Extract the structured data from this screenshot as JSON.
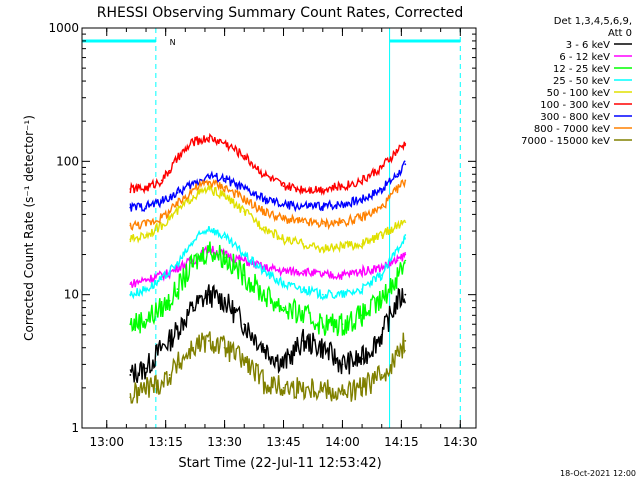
{
  "chart_data": {
    "type": "line",
    "title": "RHESSI Observing Summary Count Rates, Corrected",
    "xlabel": "Start Time (22-Jul-11 12:53:42)",
    "ylabel": "Corrected Count Rate (s⁻¹ detector⁻¹)",
    "y_scale": "log",
    "ylim": [
      1,
      1000
    ],
    "xlim": [
      "12:53:42",
      "14:34:00"
    ],
    "x_ticks": [
      "13:00",
      "13:15",
      "13:30",
      "13:45",
      "14:00",
      "14:15",
      "14:30"
    ],
    "y_ticks": [
      "1",
      "10",
      "100",
      "1000"
    ],
    "grid": false,
    "legend_placement": "right",
    "legend_header": [
      "Det 1,3,4,5,6,9,",
      "Att 0"
    ],
    "timestamp": "18-Oct-2021 12:00",
    "annotations": [
      {
        "text": "N",
        "x": "13:16",
        "y": 800,
        "color": "#00ffff"
      }
    ],
    "night_intervals": [
      {
        "start": "12:53:42",
        "end": "13:12:30",
        "color": "#00ffff"
      },
      {
        "start": "14:12:00",
        "end": "14:30:00",
        "color": "#00ffff"
      }
    ],
    "markers": [
      {
        "time": "13:12:30",
        "style": "dashed",
        "color": "#00ffff"
      },
      {
        "time": "14:12:00",
        "style": "solid",
        "color": "#00ffff"
      },
      {
        "time": "14:30:00",
        "style": "dashed",
        "color": "#00ffff"
      },
      {
        "time": "12:53:42",
        "style": "solid",
        "color": "#00ffff"
      }
    ],
    "x": [
      "13:06",
      "13:10",
      "13:14",
      "13:16",
      "13:18",
      "13:22",
      "13:26",
      "13:30",
      "13:35",
      "13:40",
      "13:45",
      "13:50",
      "13:55",
      "14:00",
      "14:05",
      "14:10",
      "14:14",
      "14:16"
    ],
    "series": [
      {
        "name": "3 - 6 keV",
        "color": "#000000",
        "values": [
          2.5,
          2.8,
          4.0,
          4.5,
          5.5,
          8.0,
          10.0,
          9.0,
          6.0,
          4.0,
          3.0,
          4.5,
          4.0,
          3.0,
          3.3,
          5.0,
          9.0,
          10.0
        ]
      },
      {
        "name": "6 - 12 keV",
        "color": "#ff00ff",
        "values": [
          12,
          13,
          14,
          14.5,
          16,
          18,
          22,
          20,
          18,
          16,
          15,
          15,
          14,
          14,
          15,
          16,
          18,
          20
        ]
      },
      {
        "name": "12 - 25 keV",
        "color": "#00ff00",
        "values": [
          6,
          6.5,
          8,
          9,
          11,
          17,
          22,
          19,
          14,
          10,
          8,
          7,
          6,
          6,
          7,
          9,
          14,
          18
        ]
      },
      {
        "name": "25 - 50 keV",
        "color": "#00ffff",
        "values": [
          10,
          11,
          13,
          15,
          17,
          25,
          32,
          27,
          20,
          15,
          12,
          11,
          10,
          10,
          11,
          14,
          22,
          28
        ]
      },
      {
        "name": "50 - 100 keV",
        "color": "#e0e000",
        "values": [
          26,
          28,
          33,
          38,
          42,
          55,
          62,
          55,
          42,
          32,
          26,
          24,
          22,
          23,
          24,
          28,
          33,
          35
        ]
      },
      {
        "name": "100 - 300 keV",
        "color": "#ff0000",
        "values": [
          62,
          63,
          72,
          85,
          105,
          140,
          150,
          138,
          110,
          80,
          65,
          62,
          62,
          65,
          72,
          90,
          120,
          135
        ]
      },
      {
        "name": "300 - 800 keV",
        "color": "#0000ff",
        "values": [
          45,
          46,
          50,
          54,
          58,
          68,
          78,
          74,
          62,
          52,
          47,
          46,
          46,
          48,
          52,
          62,
          80,
          95
        ]
      },
      {
        "name": "800 - 7000 keV",
        "color": "#ff8000",
        "values": [
          33,
          34,
          38,
          42,
          48,
          62,
          70,
          64,
          52,
          42,
          37,
          35,
          34,
          35,
          38,
          45,
          62,
          72
        ]
      },
      {
        "name": "7000 - 15000 keV",
        "color": "#808000",
        "values": [
          1.7,
          2.0,
          2.2,
          2.5,
          3.0,
          4.0,
          4.5,
          4.0,
          3.2,
          2.2,
          2.0,
          2.0,
          2.0,
          1.8,
          2.0,
          2.5,
          3.5,
          4.5
        ]
      }
    ]
  }
}
